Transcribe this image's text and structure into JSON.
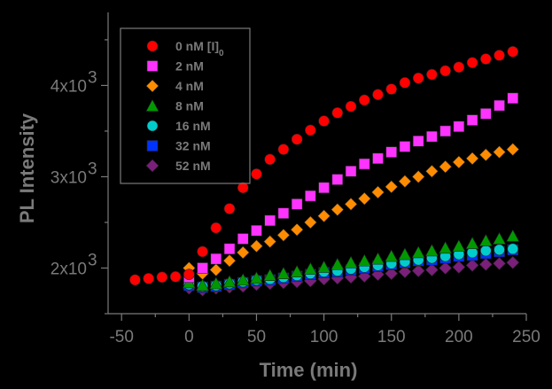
{
  "chart_data": {
    "type": "scatter",
    "title": "",
    "xlabel": "Time (min)",
    "ylabel": "PL Intensity",
    "xlim": [
      -60,
      250
    ],
    "ylim": [
      1500,
      4800
    ],
    "xticks": [
      -50,
      0,
      50,
      100,
      150,
      200,
      250
    ],
    "xtick_labels": [
      "-50",
      "0",
      "50",
      "100",
      "150",
      "200",
      "250"
    ],
    "yticks": [
      2000,
      3000,
      4000
    ],
    "ytick_labels": [
      "2x10",
      "3x10",
      "4x10"
    ],
    "ytick_superscript": "3",
    "legend_position": "top-left",
    "series": [
      {
        "name": "0 nM [I]",
        "name_subscript": "0",
        "marker": "circle",
        "color": "#ff0000",
        "x": [
          -40,
          -30,
          -20,
          -10,
          0,
          10,
          20,
          30,
          40,
          50,
          60,
          70,
          80,
          90,
          100,
          110,
          120,
          130,
          140,
          150,
          160,
          170,
          180,
          190,
          200,
          210,
          220,
          230,
          240
        ],
        "y": [
          1870,
          1885,
          1900,
          1905,
          1930,
          2180,
          2440,
          2650,
          2880,
          3030,
          3190,
          3300,
          3410,
          3510,
          3610,
          3700,
          3770,
          3840,
          3900,
          3960,
          4030,
          4080,
          4120,
          4160,
          4200,
          4250,
          4290,
          4330,
          4370
        ]
      },
      {
        "name": "2 nM",
        "marker": "square",
        "color": "#ff33ff",
        "x": [
          0,
          10,
          20,
          30,
          40,
          50,
          60,
          70,
          80,
          90,
          100,
          110,
          120,
          130,
          140,
          150,
          160,
          170,
          180,
          190,
          200,
          210,
          220,
          230,
          240
        ],
        "y": [
          1900,
          2000,
          2100,
          2210,
          2320,
          2410,
          2520,
          2600,
          2700,
          2790,
          2880,
          2970,
          3060,
          3140,
          3200,
          3270,
          3330,
          3390,
          3440,
          3500,
          3550,
          3620,
          3690,
          3780,
          3860
        ]
      },
      {
        "name": "4 nM",
        "marker": "diamond",
        "color": "#ff8c00",
        "x": [
          0,
          10,
          20,
          30,
          40,
          50,
          60,
          70,
          80,
          90,
          100,
          110,
          120,
          130,
          140,
          150,
          160,
          170,
          180,
          190,
          200,
          210,
          220,
          230,
          240
        ],
        "y": [
          2000,
          1940,
          1980,
          2080,
          2170,
          2240,
          2290,
          2360,
          2420,
          2500,
          2570,
          2640,
          2700,
          2760,
          2830,
          2890,
          2950,
          3000,
          3060,
          3110,
          3160,
          3200,
          3240,
          3270,
          3300
        ]
      },
      {
        "name": "8 nM",
        "marker": "triangle",
        "color": "#009900",
        "x": [
          0,
          10,
          20,
          30,
          40,
          50,
          60,
          70,
          80,
          90,
          100,
          110,
          120,
          130,
          140,
          150,
          160,
          170,
          180,
          190,
          200,
          210,
          220,
          230,
          240
        ],
        "y": [
          1840,
          1810,
          1830,
          1850,
          1870,
          1890,
          1920,
          1940,
          1960,
          1990,
          2010,
          2040,
          2060,
          2080,
          2100,
          2130,
          2150,
          2170,
          2190,
          2220,
          2240,
          2270,
          2300,
          2320,
          2350
        ]
      },
      {
        "name": "16 nM",
        "marker": "circle",
        "color": "#00cccc",
        "x": [
          0,
          10,
          20,
          30,
          40,
          50,
          60,
          70,
          80,
          90,
          100,
          110,
          120,
          130,
          140,
          150,
          160,
          170,
          180,
          190,
          200,
          210,
          220,
          230,
          240
        ],
        "y": [
          1820,
          1800,
          1810,
          1830,
          1850,
          1870,
          1880,
          1900,
          1920,
          1940,
          1960,
          1970,
          1990,
          2010,
          2030,
          2050,
          2070,
          2090,
          2110,
          2130,
          2150,
          2170,
          2190,
          2200,
          2210
        ]
      },
      {
        "name": "32 nM",
        "marker": "square",
        "color": "#0033ff",
        "x": [
          0,
          10,
          20,
          30,
          40,
          50,
          60,
          70,
          80,
          90,
          100,
          110,
          120,
          130,
          140,
          150,
          160,
          170,
          180,
          190,
          200,
          210,
          220,
          230,
          240
        ],
        "y": [
          1810,
          1790,
          1800,
          1820,
          1840,
          1860,
          1870,
          1890,
          1910,
          1930,
          1950,
          1960,
          1980,
          2000,
          2020,
          2040,
          2060,
          2080,
          2090,
          2110,
          2130,
          2140,
          2160,
          2180,
          2200
        ]
      },
      {
        "name": "52 nM",
        "marker": "diamond",
        "color": "#7a1f7a",
        "x": [
          0,
          10,
          20,
          30,
          40,
          50,
          60,
          70,
          80,
          90,
          100,
          110,
          120,
          130,
          140,
          150,
          160,
          170,
          180,
          190,
          200,
          210,
          220,
          230,
          240
        ],
        "y": [
          1780,
          1760,
          1780,
          1790,
          1800,
          1820,
          1830,
          1840,
          1850,
          1860,
          1880,
          1890,
          1900,
          1910,
          1930,
          1940,
          1960,
          1970,
          1980,
          2000,
          2010,
          2030,
          2040,
          2050,
          2060
        ]
      }
    ]
  }
}
